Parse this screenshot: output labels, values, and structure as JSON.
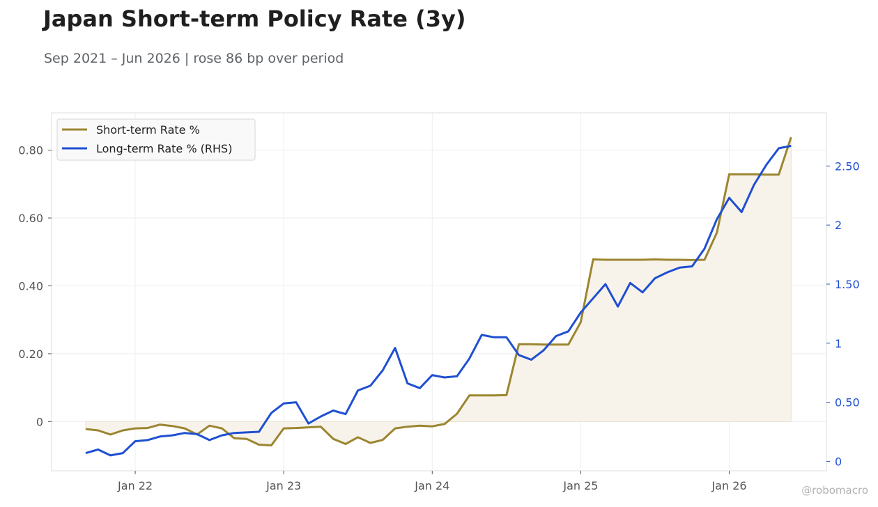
{
  "header": {
    "title": "Japan Short-term Policy Rate (3y)",
    "subtitle": "Sep 2021 – Jun 2026 | rose 86 bp over period"
  },
  "watermark": "@robomacro",
  "colors": {
    "short": "#9c8530",
    "short_fill": "#f7f3ea",
    "long": "#1f4fd1",
    "grid": "#eeeeee",
    "frame": "#dddddd",
    "left_tick": "#555555",
    "right_tick": "#1f4fd1"
  },
  "chart_data": {
    "type": "line",
    "x_start": "2021-09",
    "x_step": "monthly",
    "x_tick_labels": [
      "Jan 22",
      "Jan 23",
      "Jan 24",
      "Jan 25",
      "Jan 26"
    ],
    "legend": {
      "placement": "top-left"
    },
    "grid": true,
    "y_left": {
      "ticks": [
        0,
        0.2,
        0.4,
        0.6,
        0.8
      ],
      "tick_labels": [
        "0",
        "0.20",
        "0.40",
        "0.60",
        "0.80"
      ],
      "range": [
        -0.145,
        0.91
      ]
    },
    "y_right": {
      "ticks": [
        0,
        0.5,
        1,
        1.5,
        2,
        2.5
      ],
      "tick_labels": [
        "0",
        "0.50",
        "1",
        "1.50",
        "2",
        "2.50"
      ],
      "range": [
        -0.08,
        2.95
      ]
    },
    "series": [
      {
        "name": "Short-term Rate %",
        "axis": "left",
        "fill": true,
        "values": [
          -0.022,
          -0.026,
          -0.038,
          -0.026,
          -0.02,
          -0.019,
          -0.009,
          -0.013,
          -0.02,
          -0.038,
          -0.012,
          -0.02,
          -0.049,
          -0.051,
          -0.068,
          -0.07,
          -0.02,
          -0.019,
          -0.017,
          -0.015,
          -0.051,
          -0.066,
          -0.046,
          -0.063,
          -0.054,
          -0.02,
          -0.015,
          -0.012,
          -0.014,
          -0.007,
          0.023,
          0.077,
          0.077,
          0.077,
          0.078,
          0.228,
          0.228,
          0.227,
          0.227,
          0.227,
          0.293,
          0.478,
          0.477,
          0.477,
          0.477,
          0.477,
          0.478,
          0.477,
          0.477,
          0.476,
          0.477,
          0.557,
          0.729,
          0.729,
          0.729,
          0.728,
          0.728,
          0.838
        ]
      },
      {
        "name": "Long-term Rate % (RHS)",
        "axis": "right",
        "fill": false,
        "values": [
          0.07,
          0.1,
          0.05,
          0.07,
          0.17,
          0.18,
          0.21,
          0.22,
          0.24,
          0.23,
          0.18,
          0.22,
          0.24,
          0.245,
          0.25,
          0.41,
          0.49,
          0.5,
          0.32,
          0.38,
          0.43,
          0.4,
          0.6,
          0.64,
          0.77,
          0.96,
          0.66,
          0.62,
          0.73,
          0.71,
          0.72,
          0.87,
          1.07,
          1.05,
          1.05,
          0.9,
          0.86,
          0.94,
          1.06,
          1.1,
          1.26,
          1.38,
          1.5,
          1.31,
          1.51,
          1.43,
          1.55,
          1.6,
          1.64,
          1.65,
          1.8,
          2.05,
          2.23,
          2.11,
          2.34,
          2.51,
          2.65,
          2.67
        ]
      }
    ]
  }
}
